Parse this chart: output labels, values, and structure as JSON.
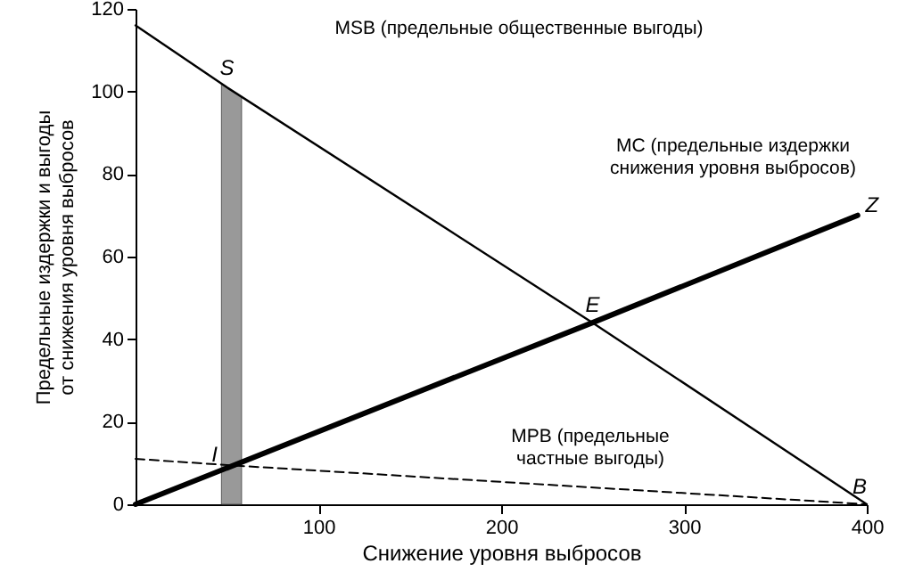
{
  "chart_data": {
    "type": "line",
    "xlabel": "Снижение уровня выбросов",
    "ylabel": "Предельные издержки и выгоды\nот снижения уровня выбросов",
    "xlim": [
      0,
      400
    ],
    "ylim": [
      0,
      120
    ],
    "xticks": [
      100,
      200,
      300,
      400
    ],
    "yticks": [
      0,
      20,
      40,
      60,
      80,
      100,
      120
    ],
    "series": [
      {
        "color": "#000000",
        "x": [
          0,
          50,
          250,
          400
        ],
        "values": [
          116,
          101,
          44,
          0
        ],
        "line_style": "solid"
      },
      {
        "color": "#000000",
        "x": [
          0,
          250,
          395
        ],
        "values": [
          0,
          44,
          70
        ],
        "line_style": "solid"
      },
      {
        "color": "#000000",
        "x": [
          0,
          50,
          400
        ],
        "values": [
          11,
          9.5,
          0
        ],
        "line_style": "dashed"
      }
    ],
    "bands": [
      {
        "axis": "x",
        "from": 47,
        "to": 58,
        "color": "#999999"
      }
    ],
    "annotations": [
      "MSB (предельные общественные выгоды)",
      "MC (предельные издержки\nснижения уровня выбросов)",
      "MPB (предельные\nчастные выгоды)",
      {
        "text": "S",
        "x": 50,
        "y": 101
      },
      {
        "text": "E",
        "x": 250,
        "y": 44
      },
      {
        "text": "I",
        "x": 50,
        "y": 9.5
      },
      {
        "text": "Z",
        "x": 395,
        "y": 70
      },
      {
        "text": "B",
        "x": 400,
        "y": 0
      }
    ],
    "grid": false,
    "marker": "none"
  }
}
